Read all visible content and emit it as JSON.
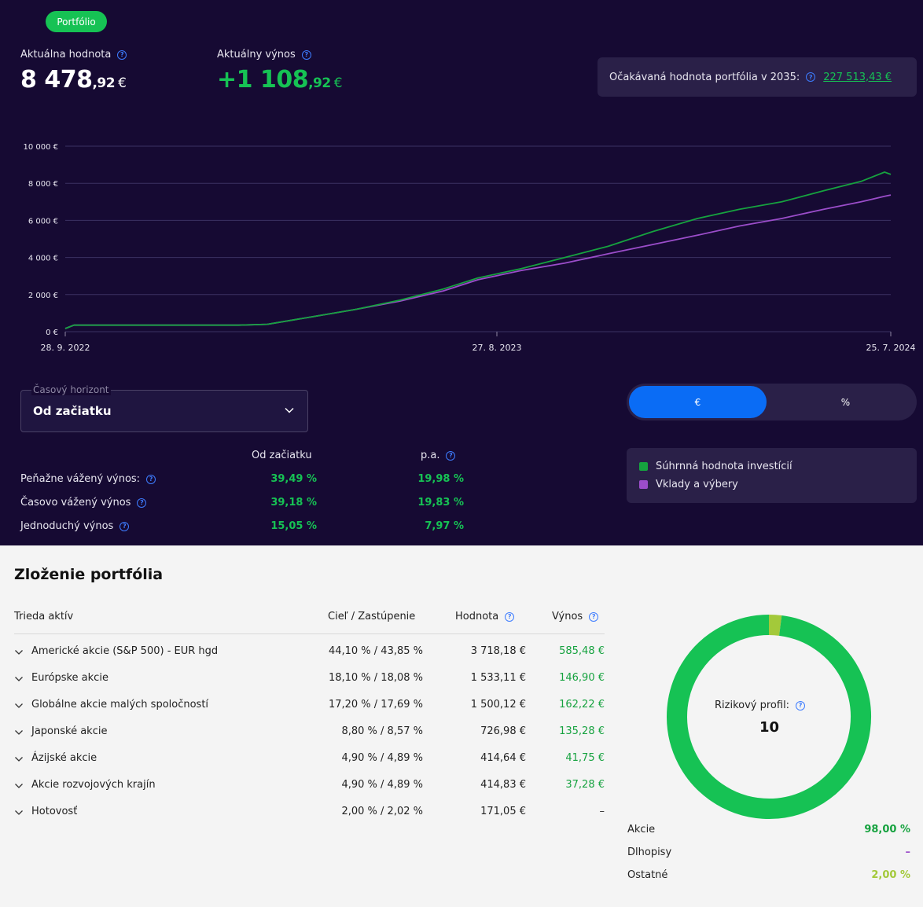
{
  "header": {
    "pill_label": "Portfólio",
    "current_value_label": "Aktuálna hodnota",
    "current_value_main": "8 478",
    "current_value_cents": ",92",
    "current_value_currency": "€",
    "current_yield_label": "Aktuálny výnos",
    "current_yield_main": "+1 108",
    "current_yield_cents": ",92",
    "current_yield_currency": "€",
    "expected_label": "Očakávaná hodnota portfólia v 2035:",
    "expected_value": "227 513,43 €"
  },
  "colors": {
    "bg_dark": "#160a33",
    "panel": "#2a2048",
    "green": "#16c254",
    "purple": "#9b4dca",
    "blue": "#0a6cf5",
    "olive": "#a3c93a"
  },
  "chart_data": {
    "type": "line",
    "y_ticks": [
      "10 000 €",
      "8 000 €",
      "6 000 €",
      "4 000 €",
      "2 000 €",
      "0 €"
    ],
    "x_ticks": [
      "28. 9. 2022",
      "27. 8. 2023",
      "25. 7. 2024"
    ],
    "ylim": [
      0,
      10000
    ],
    "grid": true,
    "x": [
      "2022-09-28",
      "2022-10-05",
      "2022-11-15",
      "2023-01-01",
      "2023-02-15",
      "2023-03-10",
      "2023-04-15",
      "2023-05-20",
      "2023-06-25",
      "2023-07-30",
      "2023-08-27",
      "2023-10-01",
      "2023-11-05",
      "2023-12-10",
      "2024-01-15",
      "2024-02-20",
      "2024-03-25",
      "2024-04-28",
      "2024-06-01",
      "2024-07-01",
      "2024-07-20",
      "2024-07-25"
    ],
    "series": [
      {
        "name": "Súhrnná hodnota investícií",
        "color": "#16a23f",
        "values": [
          170,
          350,
          350,
          350,
          350,
          400,
          800,
          1200,
          1700,
          2300,
          2900,
          3400,
          4000,
          4600,
          5400,
          6100,
          6600,
          7000,
          7600,
          8100,
          8600,
          8480
        ]
      },
      {
        "name": "Vklady a výbery",
        "color": "#9b4dca",
        "values": [
          170,
          350,
          350,
          350,
          350,
          400,
          800,
          1200,
          1650,
          2200,
          2800,
          3300,
          3700,
          4200,
          4700,
          5200,
          5700,
          6100,
          6600,
          7000,
          7300,
          7370
        ]
      }
    ]
  },
  "controls": {
    "horizon_label": "Časový horizont",
    "horizon_value": "Od začiatku",
    "toggle_eur": "€",
    "toggle_pct": "%"
  },
  "legend": {
    "item1": "Súhrnná hodnota investícií",
    "item2": "Vklady a výbery"
  },
  "returns": {
    "col1": "Od začiatku",
    "col2": "p.a.",
    "rows": [
      {
        "label": "Peňažne vážený výnos:",
        "total": "39,49 %",
        "pa": "19,98 %"
      },
      {
        "label": "Časovo vážený výnos",
        "total": "39,18 %",
        "pa": "19,83 %"
      },
      {
        "label": "Jednoduchý výnos",
        "total": "15,05 %",
        "pa": "7,97 %"
      }
    ]
  },
  "composition": {
    "title": "Zloženie portfólia",
    "headers": {
      "asset": "Trieda aktív",
      "target": "Cieľ / Zastúpenie",
      "value": "Hodnota",
      "yield": "Výnos"
    },
    "rows": [
      {
        "name": "Americké akcie (S&P 500) - EUR hgd",
        "target": "44,10 % / 43,85 %",
        "value": "3 718,18 €",
        "yield": "585,48 €"
      },
      {
        "name": "Európske akcie",
        "target": "18,10 % / 18,08 %",
        "value": "1 533,11 €",
        "yield": "146,90 €"
      },
      {
        "name": "Globálne akcie malých spoločností",
        "target": "17,20 % / 17,69 %",
        "value": "1 500,12 €",
        "yield": "162,22 €"
      },
      {
        "name": "Japonské akcie",
        "target": "8,80 % / 8,57 %",
        "value": "726,98 €",
        "yield": "135,28 €"
      },
      {
        "name": "Ázijské akcie",
        "target": "4,90 % / 4,89 %",
        "value": "414,64 €",
        "yield": "41,75 €"
      },
      {
        "name": "Akcie rozvojových krajín",
        "target": "4,90 % / 4,89 %",
        "value": "414,83 €",
        "yield": "37,28 €"
      },
      {
        "name": "Hotovosť",
        "target": "2,00 % / 2,02 %",
        "value": "171,05 €",
        "yield": "–"
      }
    ]
  },
  "risk": {
    "label": "Rizikový profil:",
    "value": "10",
    "allocation": [
      {
        "label": "Akcie",
        "value": "98,00 %",
        "share": 98,
        "color": "#16a23f"
      },
      {
        "label": "Dlhopisy",
        "value": "–",
        "share": 0,
        "color": "#9b4dca"
      },
      {
        "label": "Ostatné",
        "value": "2,00 %",
        "share": 2,
        "color": "#a3c93a"
      }
    ]
  }
}
